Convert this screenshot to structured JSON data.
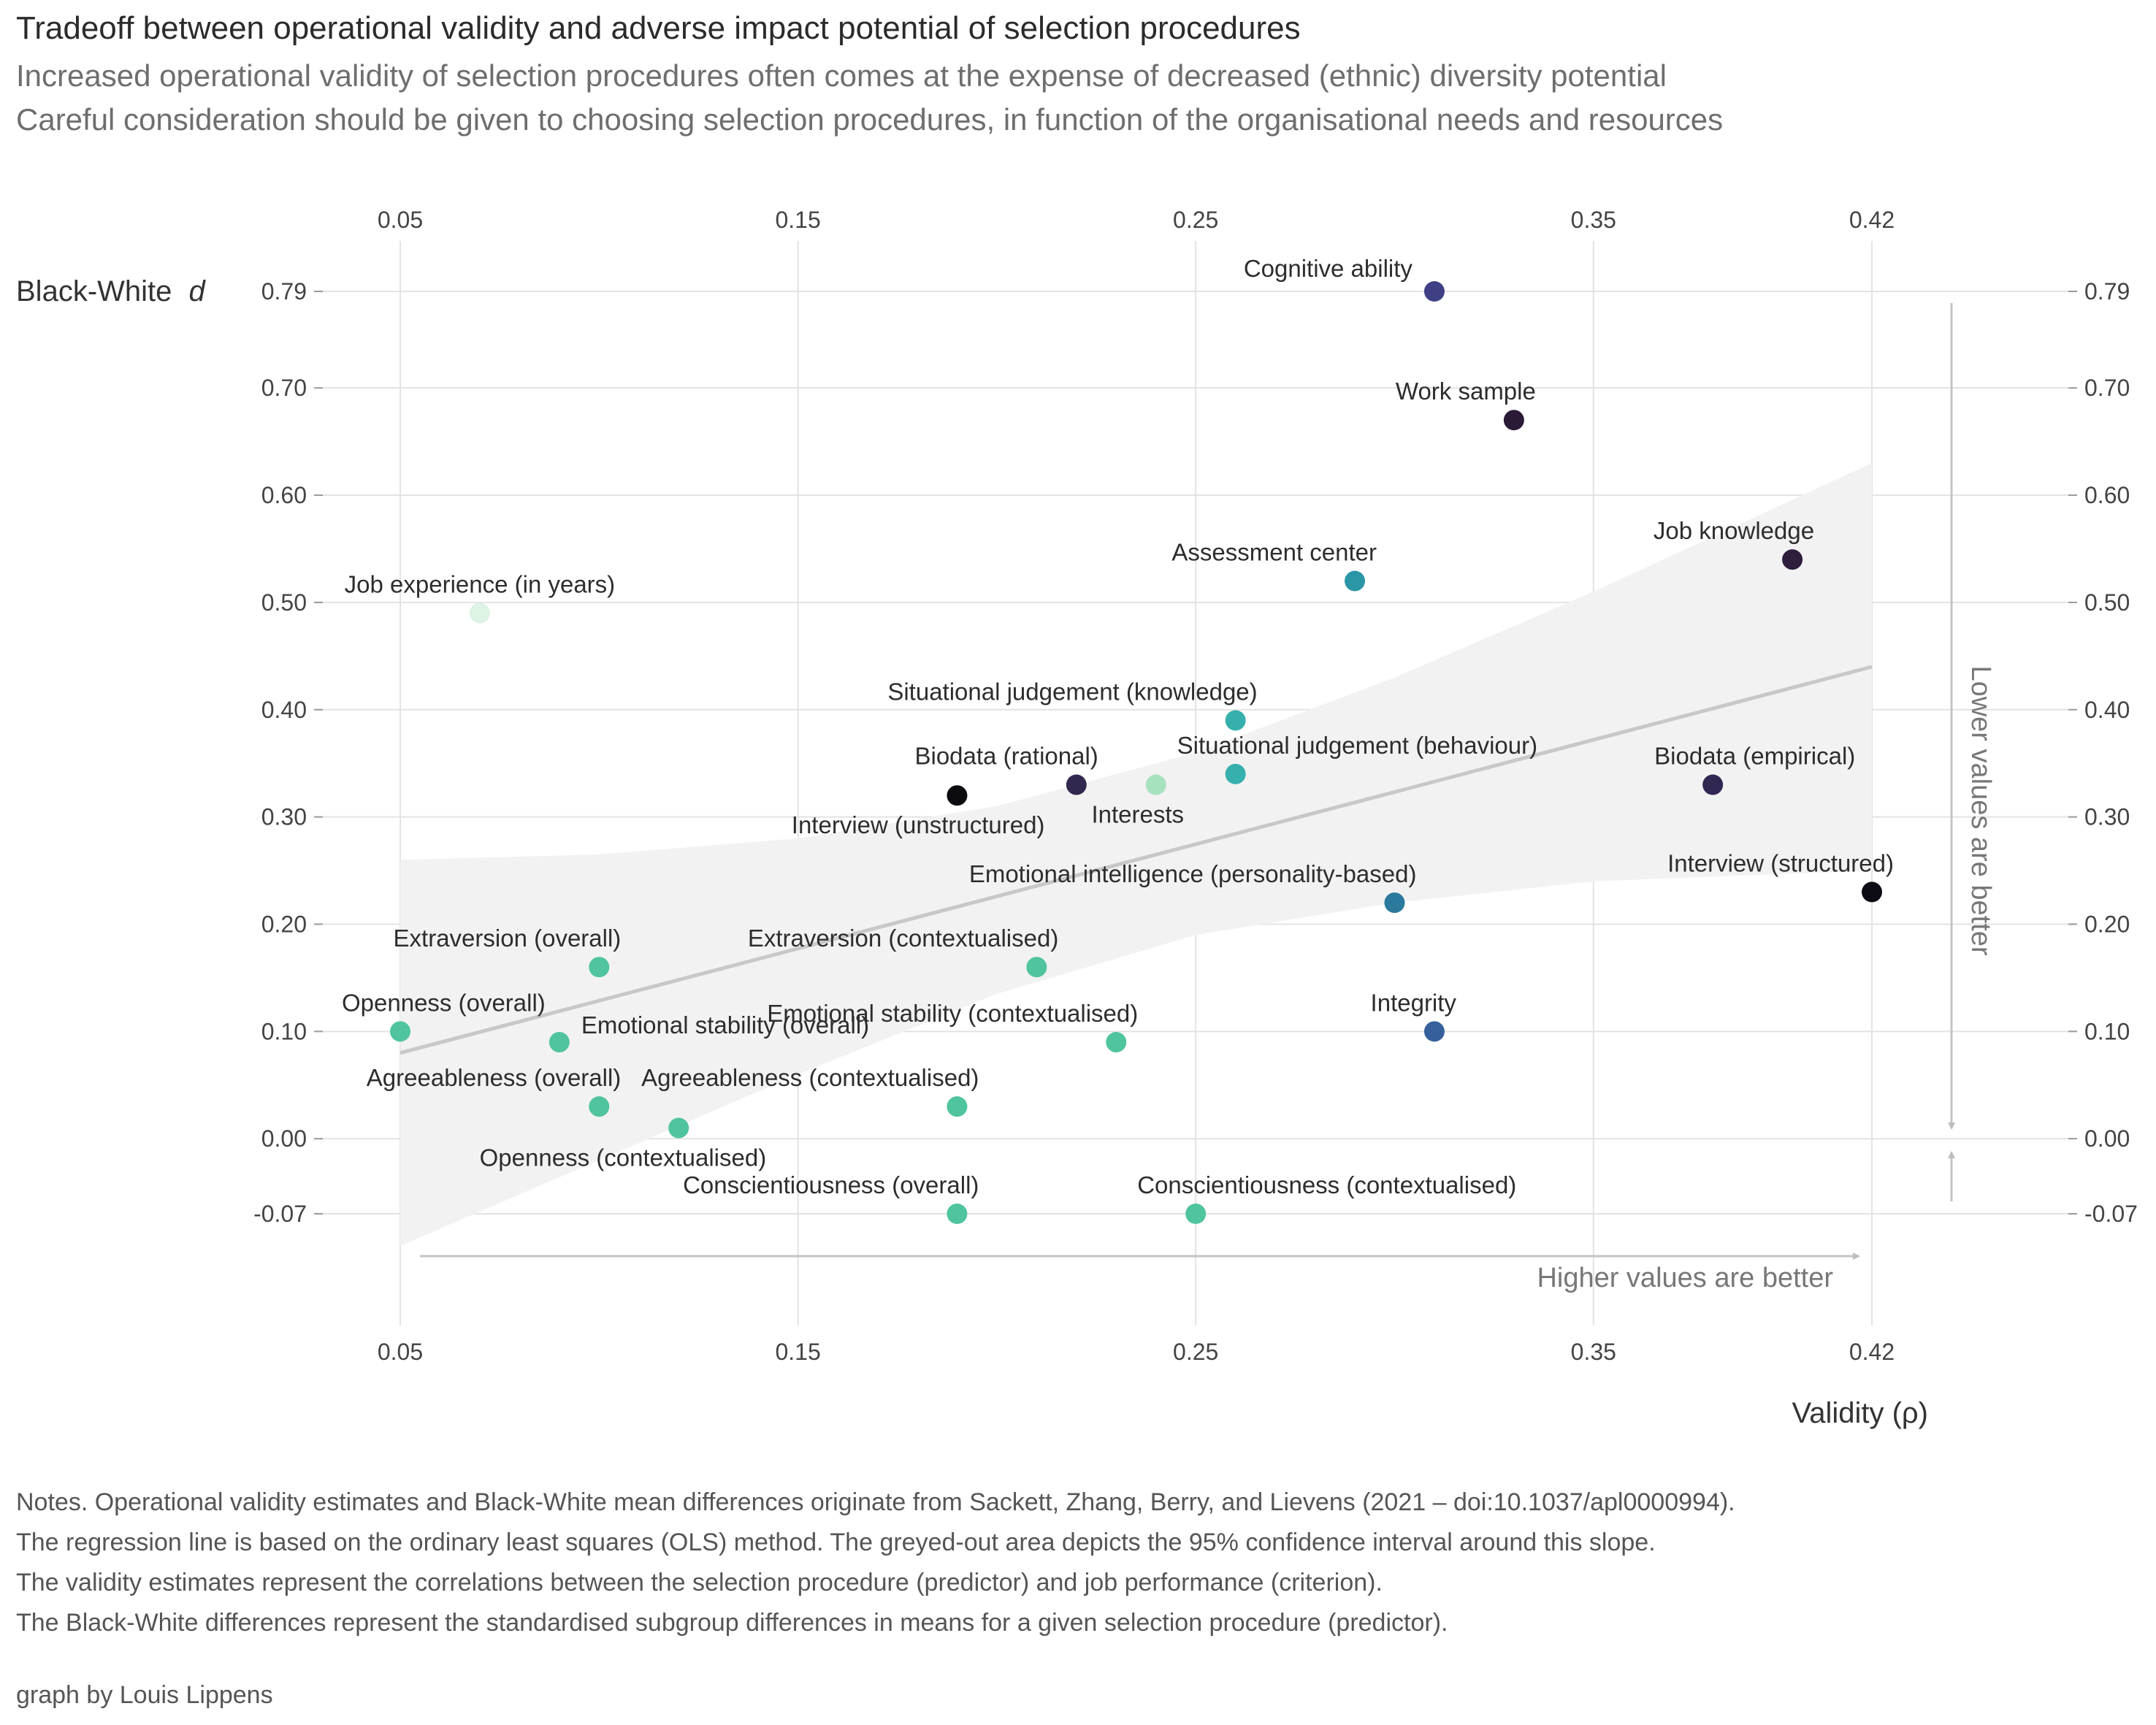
{
  "title": "Tradeoff between operational validity and adverse impact potential of selection procedures",
  "subtitle_lines": [
    "Increased operational validity of selection procedures often comes at the expense of decreased (ethnic) diversity potential",
    "Careful consideration should be given to choosing selection procedures, in function of the organisational needs and resources"
  ],
  "chart_data": {
    "type": "scatter",
    "xlabel": "Validity (ρ)",
    "ylabel": "Black-White",
    "ylabel_italic": "d",
    "xlim": [
      0.05,
      0.42
    ],
    "ylim": [
      -0.07,
      0.79
    ],
    "x_ticks": [
      0.05,
      0.15,
      0.25,
      0.35,
      0.42
    ],
    "x_tick_labels": [
      "0.05",
      "0.15",
      "0.25",
      "0.35",
      "0.42"
    ],
    "y_ticks": [
      -0.07,
      0.0,
      0.1,
      0.2,
      0.3,
      0.4,
      0.5,
      0.6,
      0.7,
      0.79
    ],
    "y_tick_labels": [
      "-0.07",
      "0.00",
      "0.10",
      "0.20",
      "0.30",
      "0.40",
      "0.50",
      "0.60",
      "0.70",
      "0.79"
    ],
    "grid": true,
    "points": [
      {
        "label": "Cognitive ability",
        "x": 0.31,
        "y": 0.79,
        "color": "#3f3f86",
        "label_pos": "upper-left"
      },
      {
        "label": "Work sample",
        "x": 0.33,
        "y": 0.67,
        "color": "#2a1a36",
        "label_pos": "above-left"
      },
      {
        "label": "Job knowledge",
        "x": 0.4,
        "y": 0.54,
        "color": "#2e1d3d",
        "label_pos": "above-left"
      },
      {
        "label": "Assessment center",
        "x": 0.29,
        "y": 0.52,
        "color": "#2a96a6",
        "label_pos": "above-left"
      },
      {
        "label": "Job experience (in years)",
        "x": 0.07,
        "y": 0.49,
        "color": "#ddf3e4",
        "label_pos": "above"
      },
      {
        "label": "Situational judgement (knowledge)",
        "x": 0.26,
        "y": 0.39,
        "color": "#35b0ad",
        "label_pos": "above-left"
      },
      {
        "label": "Situational judgement (behaviour)",
        "x": 0.26,
        "y": 0.34,
        "color": "#35b0ad",
        "label_pos": "above-right"
      },
      {
        "label": "Biodata (empirical)",
        "x": 0.38,
        "y": 0.33,
        "color": "#322652",
        "label_pos": "above-right"
      },
      {
        "label": "Biodata (rational)",
        "x": 0.22,
        "y": 0.33,
        "color": "#32274f",
        "label_pos": "above-left"
      },
      {
        "label": "Interests",
        "x": 0.24,
        "y": 0.33,
        "color": "#a7e2be",
        "label_pos": "below"
      },
      {
        "label": "Interview (unstructured)",
        "x": 0.19,
        "y": 0.32,
        "color": "#0b0b10",
        "label_pos": "below-left"
      },
      {
        "label": "Interview (structured)",
        "x": 0.42,
        "y": 0.23,
        "color": "#0d0b14",
        "label_pos": "above-left"
      },
      {
        "label": "Emotional intelligence (personality-based)",
        "x": 0.3,
        "y": 0.22,
        "color": "#2b7a9d",
        "label_pos": "above-left"
      },
      {
        "label": "Extraversion (overall)",
        "x": 0.1,
        "y": 0.16,
        "color": "#4fc49e",
        "label_pos": "above-left"
      },
      {
        "label": "Extraversion (contextualised)",
        "x": 0.21,
        "y": 0.16,
        "color": "#4fc49e",
        "label_pos": "above-left"
      },
      {
        "label": "Openness (overall)",
        "x": 0.05,
        "y": 0.1,
        "color": "#4fc49e",
        "label_pos": "above-right"
      },
      {
        "label": "Integrity",
        "x": 0.31,
        "y": 0.1,
        "color": "#35609c",
        "label_pos": "above-left"
      },
      {
        "label": "Emotional stability (overall)",
        "x": 0.09,
        "y": 0.09,
        "color": "#4fc49e",
        "label_pos": "right"
      },
      {
        "label": "Emotional stability (contextualised)",
        "x": 0.23,
        "y": 0.09,
        "color": "#4fc49e",
        "label_pos": "above-left"
      },
      {
        "label": "Agreeableness (overall)",
        "x": 0.1,
        "y": 0.03,
        "color": "#4fc49e",
        "label_pos": "above-left"
      },
      {
        "label": "Agreeableness (contextualised)",
        "x": 0.19,
        "y": 0.03,
        "color": "#4fc49e",
        "label_pos": "above-left"
      },
      {
        "label": "Openness (contextualised)",
        "x": 0.12,
        "y": 0.01,
        "color": "#4fc49e",
        "label_pos": "below-left"
      },
      {
        "label": "Conscientiousness (overall)",
        "x": 0.19,
        "y": -0.07,
        "color": "#4fc49e",
        "label_pos": "above-left"
      },
      {
        "label": "Conscientiousness (contextualised)",
        "x": 0.25,
        "y": -0.07,
        "color": "#4fc49e",
        "label_pos": "above-right"
      }
    ],
    "regression": {
      "method": "OLS",
      "line": [
        [
          0.05,
          0.08
        ],
        [
          0.42,
          0.44
        ]
      ],
      "ci_upper": [
        [
          0.05,
          0.26
        ],
        [
          0.1,
          0.265
        ],
        [
          0.15,
          0.28
        ],
        [
          0.2,
          0.31
        ],
        [
          0.25,
          0.36
        ],
        [
          0.3,
          0.43
        ],
        [
          0.35,
          0.51
        ],
        [
          0.42,
          0.63
        ]
      ],
      "ci_lower": [
        [
          0.05,
          -0.1
        ],
        [
          0.1,
          -0.02
        ],
        [
          0.15,
          0.06
        ],
        [
          0.2,
          0.135
        ],
        [
          0.25,
          0.19
        ],
        [
          0.3,
          0.22
        ],
        [
          0.35,
          0.24
        ],
        [
          0.42,
          0.25
        ]
      ],
      "line_color": "#c8c8c8",
      "band_color": "#f2f2f2"
    },
    "annotations": {
      "x_arrow_label": "Higher values are better",
      "y_arrow_label": "Lower values are better"
    }
  },
  "notes": [
    "Notes. Operational validity estimates and Black-White mean differences originate from Sackett, Zhang, Berry, and Lievens (2021 – doi:10.1037/apl0000994).",
    "The regression line is based on the ordinary least squares (OLS) method. The greyed-out area depicts the 95% confidence interval around this slope.",
    "The validity estimates represent the correlations between the selection procedure (predictor) and job performance (criterion).",
    "The Black-White differences represent the standardised subgroup differences in means for a given selection procedure (predictor)."
  ],
  "caption": "graph by Louis Lippens"
}
